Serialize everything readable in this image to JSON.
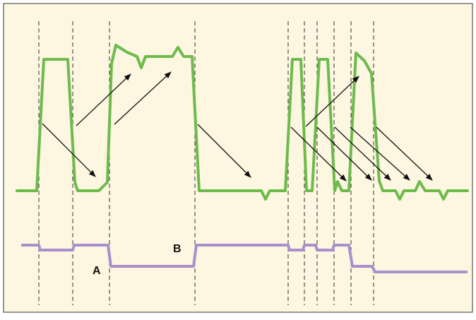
{
  "labels": {
    "a": "A",
    "b": "B"
  },
  "colors": {
    "background": "#fdf6e0",
    "frame": "#333333",
    "guide": "#333333",
    "top_trace": "#6dbb4c",
    "bottom_trace": "#a98fcc",
    "arrow": "#111111",
    "label": "#111111"
  }
}
